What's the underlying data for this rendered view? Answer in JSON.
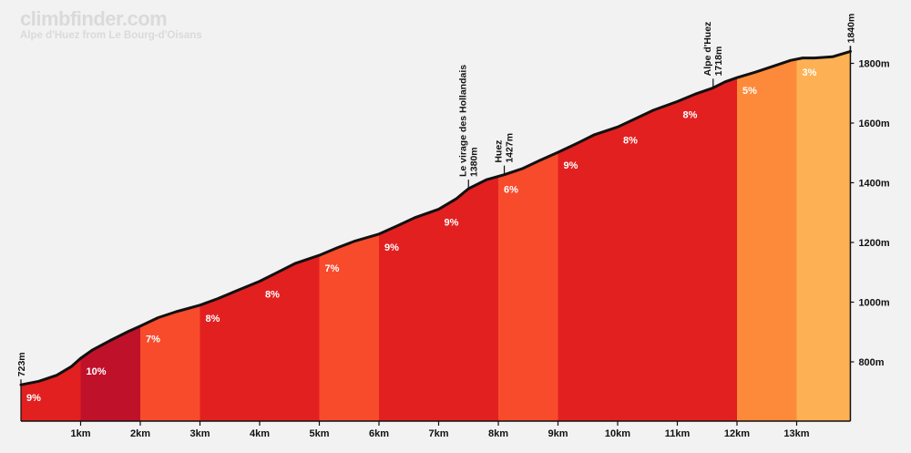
{
  "header": {
    "site": "climbfinder.com",
    "subtitle": "Alpe d'Huez from Le Bourg-d'Oisans"
  },
  "chart_data": {
    "type": "area",
    "title": "Alpe d'Huez from Le Bourg-d'Oisans",
    "xlim": [
      0,
      13.9
    ],
    "ylim": [
      600,
      1900
    ],
    "x_ticks": [
      {
        "value": 1,
        "label": "1km"
      },
      {
        "value": 2,
        "label": "2km"
      },
      {
        "value": 3,
        "label": "3km"
      },
      {
        "value": 4,
        "label": "4km"
      },
      {
        "value": 5,
        "label": "5km"
      },
      {
        "value": 6,
        "label": "6km"
      },
      {
        "value": 7,
        "label": "7km"
      },
      {
        "value": 8,
        "label": "8km"
      },
      {
        "value": 9,
        "label": "9km"
      },
      {
        "value": 10,
        "label": "10km"
      },
      {
        "value": 11,
        "label": "11km"
      },
      {
        "value": 12,
        "label": "12km"
      },
      {
        "value": 13,
        "label": "13km"
      }
    ],
    "y_ticks": [
      {
        "value": 800,
        "label": "800m"
      },
      {
        "value": 1000,
        "label": "1000m"
      },
      {
        "value": 1200,
        "label": "1200m"
      },
      {
        "value": 1400,
        "label": "1400m"
      },
      {
        "value": 1600,
        "label": "1600m"
      },
      {
        "value": 1800,
        "label": "1800m"
      }
    ],
    "profile": [
      [
        0,
        723
      ],
      [
        0.3,
        735
      ],
      [
        0.6,
        755
      ],
      [
        0.85,
        785
      ],
      [
        1.0,
        812
      ],
      [
        1.2,
        840
      ],
      [
        1.5,
        872
      ],
      [
        1.8,
        902
      ],
      [
        2.0,
        920
      ],
      [
        2.3,
        948
      ],
      [
        2.6,
        968
      ],
      [
        3.0,
        990
      ],
      [
        3.3,
        1012
      ],
      [
        3.6,
        1037
      ],
      [
        4.0,
        1070
      ],
      [
        4.3,
        1100
      ],
      [
        4.6,
        1130
      ],
      [
        5.0,
        1157
      ],
      [
        5.3,
        1182
      ],
      [
        5.6,
        1205
      ],
      [
        6.0,
        1228
      ],
      [
        6.3,
        1255
      ],
      [
        6.6,
        1283
      ],
      [
        7.0,
        1311
      ],
      [
        7.3,
        1347
      ],
      [
        7.5,
        1380
      ],
      [
        7.8,
        1410
      ],
      [
        8.1,
        1427
      ],
      [
        8.4,
        1447
      ],
      [
        8.7,
        1475
      ],
      [
        9.0,
        1502
      ],
      [
        9.3,
        1530
      ],
      [
        9.6,
        1560
      ],
      [
        10.0,
        1587
      ],
      [
        10.3,
        1615
      ],
      [
        10.6,
        1643
      ],
      [
        11.0,
        1672
      ],
      [
        11.3,
        1697
      ],
      [
        11.6,
        1718
      ],
      [
        11.8,
        1738
      ],
      [
        12.0,
        1752
      ],
      [
        12.3,
        1770
      ],
      [
        12.6,
        1790
      ],
      [
        12.9,
        1810
      ],
      [
        13.1,
        1818
      ],
      [
        13.3,
        1818
      ],
      [
        13.6,
        1822
      ],
      [
        13.9,
        1840
      ]
    ],
    "segments": [
      {
        "start": 0,
        "end": 1,
        "grade": "9%",
        "color": "#e22020"
      },
      {
        "start": 1,
        "end": 2,
        "grade": "10%",
        "color": "#c0112b"
      },
      {
        "start": 2,
        "end": 3,
        "grade": "7%",
        "color": "#f74b2c"
      },
      {
        "start": 3,
        "end": 4,
        "grade": "8%",
        "color": "#e22020"
      },
      {
        "start": 4,
        "end": 5,
        "grade": "8%",
        "color": "#e22020"
      },
      {
        "start": 5,
        "end": 6,
        "grade": "7%",
        "color": "#f74b2c"
      },
      {
        "start": 6,
        "end": 7,
        "grade": "9%",
        "color": "#e22020"
      },
      {
        "start": 7,
        "end": 8,
        "grade": "9%",
        "color": "#e22020"
      },
      {
        "start": 8,
        "end": 9,
        "grade": "6%",
        "color": "#f74b2c"
      },
      {
        "start": 9,
        "end": 10,
        "grade": "9%",
        "color": "#e22020"
      },
      {
        "start": 10,
        "end": 11,
        "grade": "8%",
        "color": "#e22020"
      },
      {
        "start": 11,
        "end": 12,
        "grade": "8%",
        "color": "#e22020"
      },
      {
        "start": 12,
        "end": 13,
        "grade": "5%",
        "color": "#fd8a3a"
      },
      {
        "start": 13,
        "end": 13.9,
        "grade": "3%",
        "color": "#fdb154"
      }
    ],
    "annotations": [
      {
        "x": 0,
        "label": "723m"
      },
      {
        "x": 7.5,
        "label": "Le virage des Hollandais",
        "sublabel": "1380m"
      },
      {
        "x": 8.1,
        "label": "Huez",
        "sublabel": "1427m"
      },
      {
        "x": 11.6,
        "label": "Alpe d'Huez",
        "sublabel": "1718m"
      },
      {
        "x": 13.9,
        "label": "1840m"
      }
    ]
  }
}
